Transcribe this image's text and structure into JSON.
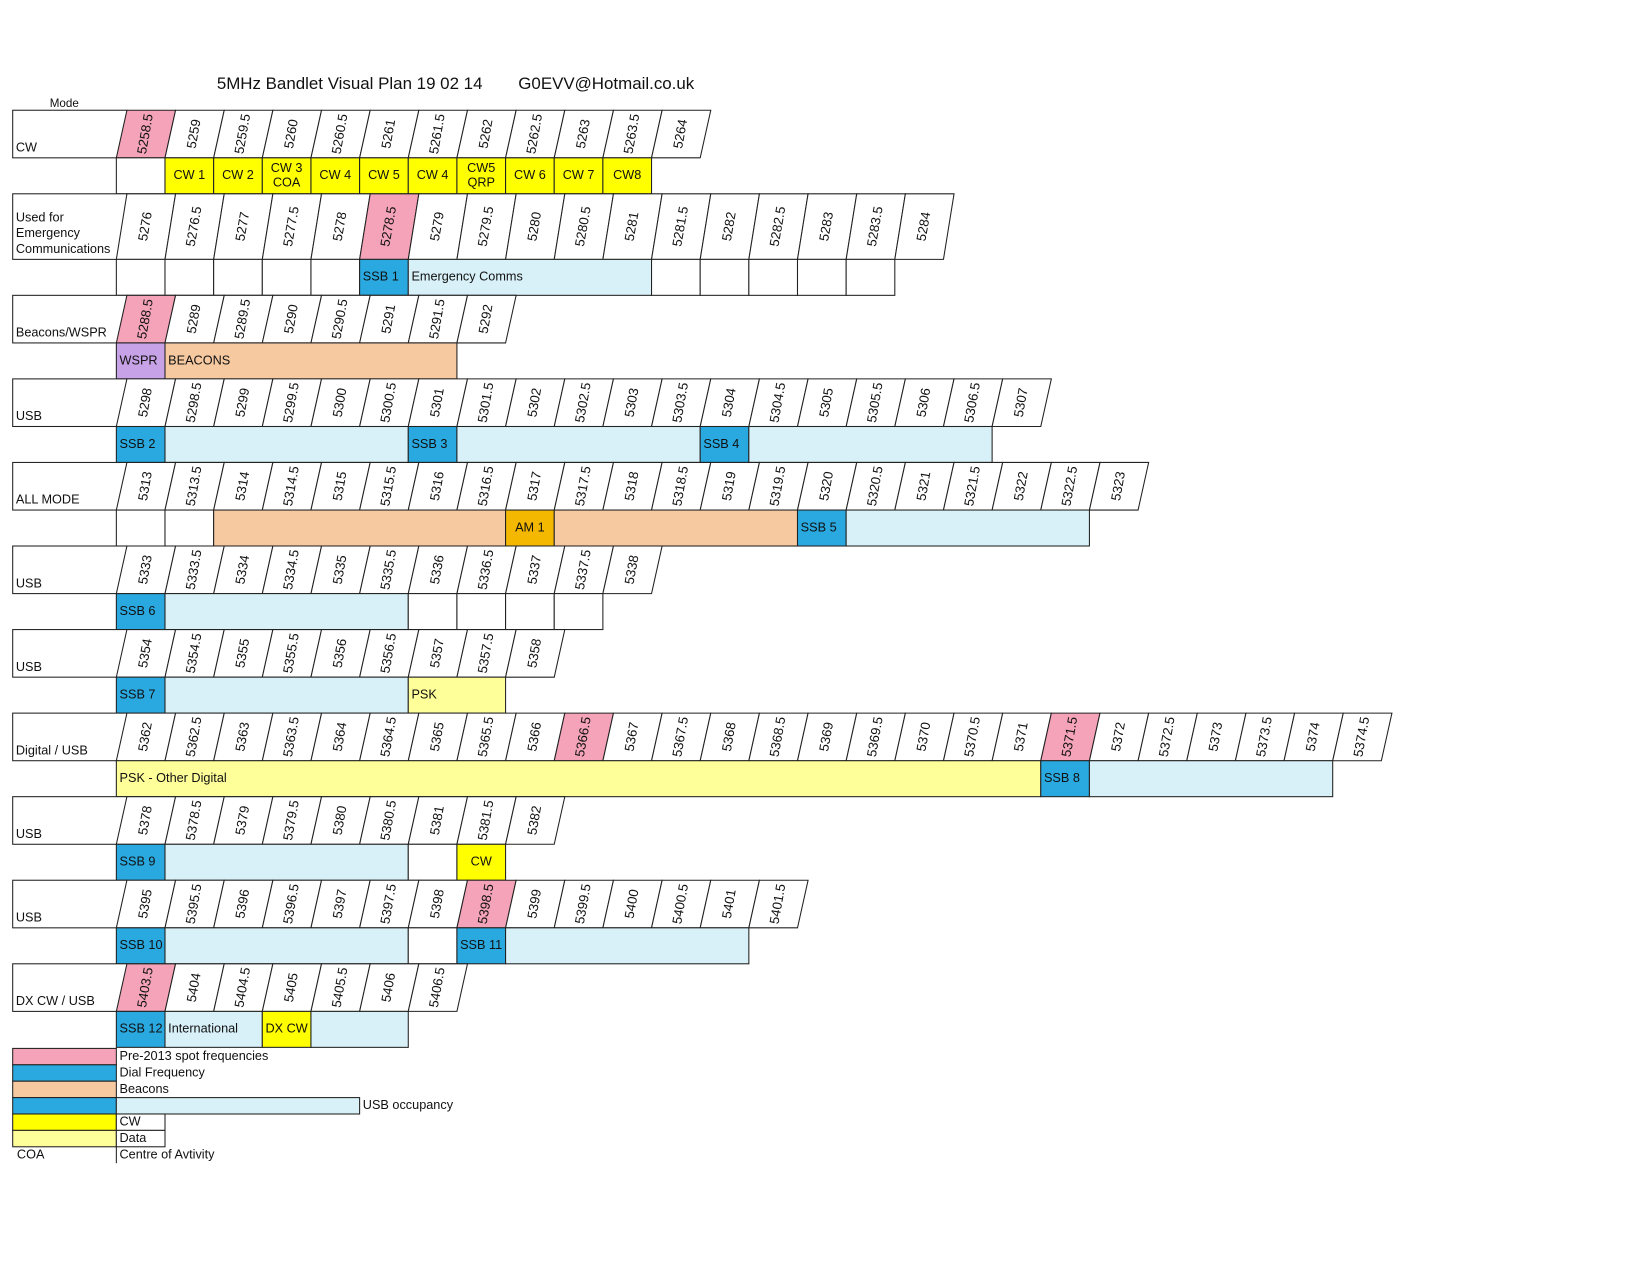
{
  "header": {
    "title": "5MHz Bandlet Visual Plan 19 02 14",
    "contact": "G0EVV@Hotmail.co.uk",
    "mode_heading": "Mode"
  },
  "bands": [
    {
      "mode": [
        "CW"
      ],
      "freqs": [
        {
          "f": 5258.5,
          "color": "#f4a3b8"
        },
        {
          "f": 5259
        },
        {
          "f": 5259.5
        },
        {
          "f": 5260
        },
        {
          "f": 5260.5
        },
        {
          "f": 5261
        },
        {
          "f": 5261.5
        },
        {
          "f": 5262
        },
        {
          "f": 5262.5
        },
        {
          "f": 5263
        },
        {
          "f": 5263.5
        },
        {
          "f": 5264
        }
      ],
      "alloc": [
        {
          "color": "#ffffff"
        },
        {
          "label": [
            "CW 1"
          ],
          "color": "#ffff00"
        },
        {
          "label": [
            "CW 2"
          ],
          "color": "#ffff00"
        },
        {
          "label": [
            "CW 3",
            "COA"
          ],
          "color": "#ffff00"
        },
        {
          "label": [
            "CW 4"
          ],
          "color": "#ffff00"
        },
        {
          "label": [
            "CW 5"
          ],
          "color": "#ffff00"
        },
        {
          "label": [
            "CW 4"
          ],
          "color": "#ffff00"
        },
        {
          "label": [
            "CW5",
            "QRP"
          ],
          "color": "#ffff00"
        },
        {
          "label": [
            "CW 6"
          ],
          "color": "#ffff00"
        },
        {
          "label": [
            "CW 7"
          ],
          "color": "#ffff00"
        },
        {
          "label": [
            "CW8"
          ],
          "color": "#ffff00"
        }
      ]
    },
    {
      "mode": [
        "Used for",
        "Emergency",
        "Communications"
      ],
      "freqs": [
        {
          "f": 5276
        },
        {
          "f": 5276.5
        },
        {
          "f": 5277
        },
        {
          "f": 5277.5
        },
        {
          "f": 5278
        },
        {
          "f": 5278.5,
          "color": "#f4a3b8"
        },
        {
          "f": 5279
        },
        {
          "f": 5279.5
        },
        {
          "f": 5280
        },
        {
          "f": 5280.5
        },
        {
          "f": 5281
        },
        {
          "f": 5281.5
        },
        {
          "f": 5282
        },
        {
          "f": 5282.5
        },
        {
          "f": 5283
        },
        {
          "f": 5283.5
        },
        {
          "f": 5284
        }
      ],
      "alloc": [
        {
          "color": "#ffffff"
        },
        {
          "color": "#ffffff"
        },
        {
          "color": "#ffffff"
        },
        {
          "color": "#ffffff"
        },
        {
          "color": "#ffffff"
        },
        {
          "label": [
            "SSB 1"
          ],
          "color": "#29a9e0"
        },
        {
          "label": [
            "Emergency Comms"
          ],
          "color": "#d8f1f8",
          "span": 5
        },
        {
          "color": "#ffffff"
        },
        {
          "color": "#ffffff"
        },
        {
          "color": "#ffffff"
        },
        {
          "color": "#ffffff"
        },
        {
          "color": "#ffffff"
        }
      ]
    },
    {
      "mode": [
        "Beacons/WSPR"
      ],
      "freqs": [
        {
          "f": 5288.5,
          "color": "#f4a3b8"
        },
        {
          "f": 5289
        },
        {
          "f": 5289.5
        },
        {
          "f": 5290
        },
        {
          "f": 5290.5
        },
        {
          "f": 5291
        },
        {
          "f": 5291.5
        },
        {
          "f": 5292
        }
      ],
      "alloc": [
        {
          "label": [
            "WSPR"
          ],
          "color": "#c8a2e6"
        },
        {
          "label": [
            "BEACONS"
          ],
          "color": "#f6c9a0",
          "span": 6
        }
      ]
    },
    {
      "mode": [
        "USB"
      ],
      "freqs": [
        {
          "f": 5298
        },
        {
          "f": 5298.5
        },
        {
          "f": 5299
        },
        {
          "f": 5299.5
        },
        {
          "f": 5300
        },
        {
          "f": 5300.5
        },
        {
          "f": 5301
        },
        {
          "f": 5301.5
        },
        {
          "f": 5302
        },
        {
          "f": 5302.5
        },
        {
          "f": 5303
        },
        {
          "f": 5303.5
        },
        {
          "f": 5304
        },
        {
          "f": 5304.5
        },
        {
          "f": 5305
        },
        {
          "f": 5305.5
        },
        {
          "f": 5306
        },
        {
          "f": 5306.5
        },
        {
          "f": 5307
        }
      ],
      "alloc": [
        {
          "label": [
            "SSB 2"
          ],
          "color": "#29a9e0"
        },
        {
          "color": "#d8f1f8",
          "span": 5
        },
        {
          "label": [
            "SSB 3"
          ],
          "color": "#29a9e0"
        },
        {
          "color": "#d8f1f8",
          "span": 5
        },
        {
          "label": [
            "SSB 4"
          ],
          "color": "#29a9e0"
        },
        {
          "color": "#d8f1f8",
          "span": 5
        }
      ]
    },
    {
      "mode": [
        "ALL MODE"
      ],
      "freqs": [
        {
          "f": 5313
        },
        {
          "f": 5313.5
        },
        {
          "f": 5314
        },
        {
          "f": 5314.5
        },
        {
          "f": 5315
        },
        {
          "f": 5315.5
        },
        {
          "f": 5316
        },
        {
          "f": 5316.5
        },
        {
          "f": 5317
        },
        {
          "f": 5317.5
        },
        {
          "f": 5318
        },
        {
          "f": 5318.5
        },
        {
          "f": 5319
        },
        {
          "f": 5319.5
        },
        {
          "f": 5320
        },
        {
          "f": 5320.5
        },
        {
          "f": 5321
        },
        {
          "f": 5321.5
        },
        {
          "f": 5322
        },
        {
          "f": 5322.5
        },
        {
          "f": 5323
        }
      ],
      "alloc": [
        {
          "color": "#ffffff"
        },
        {
          "color": "#ffffff"
        },
        {
          "color": "#f6c9a0",
          "span": 6
        },
        {
          "label": [
            "AM 1"
          ],
          "color": "#f5b800"
        },
        {
          "color": "#f6c9a0",
          "span": 5
        },
        {
          "label": [
            "SSB 5"
          ],
          "color": "#29a9e0"
        },
        {
          "color": "#d8f1f8",
          "span": 5
        }
      ]
    },
    {
      "mode": [
        "USB"
      ],
      "freqs": [
        {
          "f": 5333
        },
        {
          "f": 5333.5
        },
        {
          "f": 5334
        },
        {
          "f": 5334.5
        },
        {
          "f": 5335
        },
        {
          "f": 5335.5
        },
        {
          "f": 5336
        },
        {
          "f": 5336.5
        },
        {
          "f": 5337
        },
        {
          "f": 5337.5
        },
        {
          "f": 5338
        }
      ],
      "alloc": [
        {
          "label": [
            "SSB 6"
          ],
          "color": "#29a9e0"
        },
        {
          "color": "#d8f1f8",
          "span": 5
        },
        {
          "color": "#ffffff"
        },
        {
          "color": "#ffffff"
        },
        {
          "color": "#ffffff"
        },
        {
          "color": "#ffffff"
        }
      ]
    },
    {
      "mode": [
        "USB"
      ],
      "freqs": [
        {
          "f": 5354
        },
        {
          "f": 5354.5
        },
        {
          "f": 5355
        },
        {
          "f": 5355.5
        },
        {
          "f": 5356
        },
        {
          "f": 5356.5
        },
        {
          "f": 5357
        },
        {
          "f": 5357.5
        },
        {
          "f": 5358
        }
      ],
      "alloc": [
        {
          "label": [
            "SSB 7"
          ],
          "color": "#29a9e0"
        },
        {
          "color": "#d8f1f8",
          "span": 5
        },
        {
          "label": [
            "PSK"
          ],
          "color": "#ffff99",
          "span": 2
        }
      ]
    },
    {
      "mode": [
        "Digital / USB"
      ],
      "freqs": [
        {
          "f": 5362
        },
        {
          "f": 5362.5
        },
        {
          "f": 5363
        },
        {
          "f": 5363.5
        },
        {
          "f": 5364
        },
        {
          "f": 5364.5
        },
        {
          "f": 5365
        },
        {
          "f": 5365.5
        },
        {
          "f": 5366
        },
        {
          "f": 5366.5,
          "color": "#f4a3b8"
        },
        {
          "f": 5367
        },
        {
          "f": 5367.5
        },
        {
          "f": 5368
        },
        {
          "f": 5368.5
        },
        {
          "f": 5369
        },
        {
          "f": 5369.5
        },
        {
          "f": 5370
        },
        {
          "f": 5370.5
        },
        {
          "f": 5371
        },
        {
          "f": 5371.5,
          "color": "#f4a3b8"
        },
        {
          "f": 5372
        },
        {
          "f": 5372.5
        },
        {
          "f": 5373
        },
        {
          "f": 5373.5
        },
        {
          "f": 5374
        },
        {
          "f": 5374.5
        }
      ],
      "alloc": [
        {
          "label": [
            "PSK - Other Digital"
          ],
          "color": "#ffff99",
          "span": 19
        },
        {
          "label": [
            "SSB 8"
          ],
          "color": "#29a9e0"
        },
        {
          "color": "#d8f1f8",
          "span": 5
        }
      ]
    },
    {
      "mode": [
        "USB"
      ],
      "freqs": [
        {
          "f": 5378
        },
        {
          "f": 5378.5
        },
        {
          "f": 5379
        },
        {
          "f": 5379.5
        },
        {
          "f": 5380
        },
        {
          "f": 5380.5
        },
        {
          "f": 5381
        },
        {
          "f": 5381.5
        },
        {
          "f": 5382
        }
      ],
      "alloc": [
        {
          "label": [
            "SSB 9"
          ],
          "color": "#29a9e0"
        },
        {
          "color": "#d8f1f8",
          "span": 5
        },
        {
          "color": "#ffffff"
        },
        {
          "label": [
            "CW"
          ],
          "color": "#ffff00"
        }
      ]
    },
    {
      "mode": [
        "USB"
      ],
      "freqs": [
        {
          "f": 5395
        },
        {
          "f": 5395.5
        },
        {
          "f": 5396
        },
        {
          "f": 5396.5
        },
        {
          "f": 5397
        },
        {
          "f": 5397.5
        },
        {
          "f": 5398
        },
        {
          "f": 5398.5,
          "color": "#f4a3b8"
        },
        {
          "f": 5399
        },
        {
          "f": 5399.5
        },
        {
          "f": 5400
        },
        {
          "f": 5400.5
        },
        {
          "f": 5401
        },
        {
          "f": 5401.5
        }
      ],
      "alloc": [
        {
          "label": [
            "SSB 10"
          ],
          "color": "#29a9e0"
        },
        {
          "color": "#d8f1f8",
          "span": 5
        },
        {
          "color": "#ffffff"
        },
        {
          "label": [
            "SSB 11"
          ],
          "color": "#29a9e0"
        },
        {
          "color": "#d8f1f8",
          "span": 5
        }
      ]
    },
    {
      "mode": [
        "DX CW / USB"
      ],
      "freqs": [
        {
          "f": 5403.5,
          "color": "#f4a3b8"
        },
        {
          "f": 5404
        },
        {
          "f": 5404.5
        },
        {
          "f": 5405
        },
        {
          "f": 5405.5
        },
        {
          "f": 5406
        },
        {
          "f": 5406.5
        }
      ],
      "alloc": [
        {
          "label": [
            "SSB 12"
          ],
          "color": "#29a9e0"
        },
        {
          "label": [
            "International"
          ],
          "color": "#d8f1f8",
          "span": 2
        },
        {
          "label": [
            "DX CW"
          ],
          "color": "#ffff00"
        },
        {
          "color": "#d8f1f8",
          "span": 2
        }
      ]
    }
  ],
  "legend": [
    {
      "label": "Pre-2013 spot frequencies",
      "colors": [
        "#f4a3b8"
      ]
    },
    {
      "label": "Dial Frequency",
      "colors": [
        "#29a9e0"
      ]
    },
    {
      "label": "Beacons",
      "colors": [
        "#f6c9a0"
      ]
    },
    {
      "label": "USB occupancy",
      "colors": [
        "#29a9e0",
        "#d8f1f8"
      ]
    },
    {
      "label": "CW",
      "colors": [
        "#ffff00",
        "#ffffff"
      ]
    },
    {
      "label": "Data",
      "colors": [
        "#ffff99",
        "#ffffff"
      ]
    },
    {
      "key": "COA",
      "label": "Centre of Avtivity"
    }
  ]
}
